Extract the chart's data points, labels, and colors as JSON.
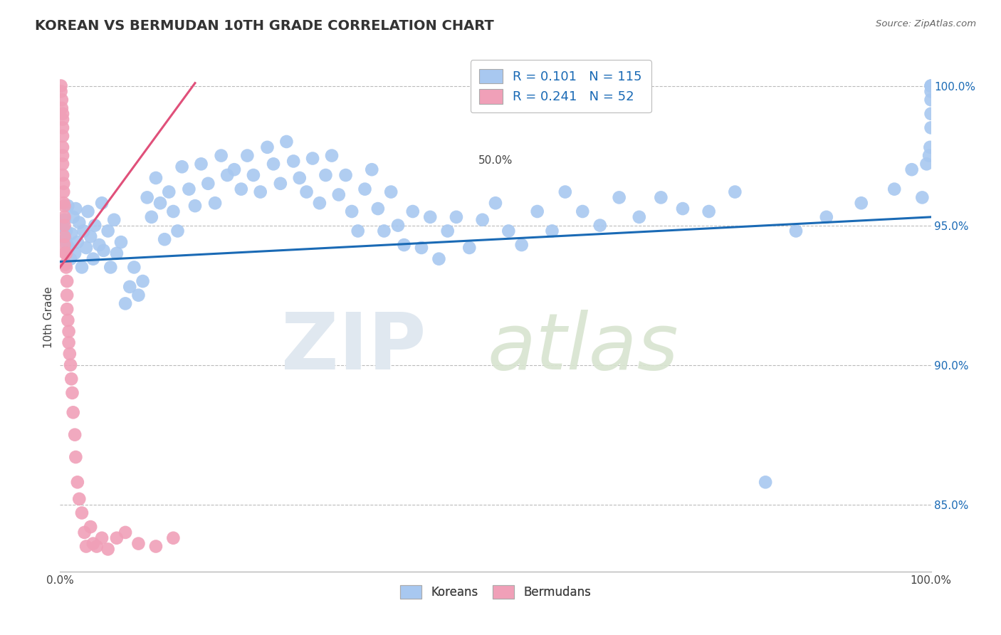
{
  "title": "KOREAN VS BERMUDAN 10TH GRADE CORRELATION CHART",
  "source_text": "Source: ZipAtlas.com",
  "ylabel": "10th Grade",
  "x_min": 0.0,
  "x_max": 1.0,
  "y_min": 0.826,
  "y_max": 1.008,
  "y_ticks": [
    0.85,
    0.9,
    0.95,
    1.0
  ],
  "y_ticklabels": [
    "85.0%",
    "90.0%",
    "95.0%",
    "100.0%"
  ],
  "korean_R": 0.101,
  "korean_N": 115,
  "bermudan_R": 0.241,
  "bermudan_N": 52,
  "korean_color": "#a8c8f0",
  "bermudan_color": "#f0a0b8",
  "korean_line_color": "#1a6ab5",
  "bermudan_line_color": "#e0507a",
  "legend_label_korean": "Koreans",
  "legend_label_bermudan": "Bermudans",
  "korean_line_x": [
    0.0,
    1.0
  ],
  "korean_line_y": [
    0.937,
    0.953
  ],
  "bermudan_line_x": [
    0.0,
    0.155
  ],
  "bermudan_line_y": [
    0.935,
    1.001
  ],
  "korean_pts_x": [
    0.003,
    0.005,
    0.006,
    0.007,
    0.008,
    0.009,
    0.01,
    0.012,
    0.013,
    0.015,
    0.017,
    0.018,
    0.02,
    0.022,
    0.025,
    0.027,
    0.03,
    0.032,
    0.035,
    0.038,
    0.04,
    0.045,
    0.048,
    0.05,
    0.055,
    0.058,
    0.062,
    0.065,
    0.07,
    0.075,
    0.08,
    0.085,
    0.09,
    0.095,
    0.1,
    0.105,
    0.11,
    0.115,
    0.12,
    0.125,
    0.13,
    0.135,
    0.14,
    0.148,
    0.155,
    0.162,
    0.17,
    0.178,
    0.185,
    0.192,
    0.2,
    0.208,
    0.215,
    0.222,
    0.23,
    0.238,
    0.245,
    0.253,
    0.26,
    0.268,
    0.275,
    0.283,
    0.29,
    0.298,
    0.305,
    0.312,
    0.32,
    0.328,
    0.335,
    0.342,
    0.35,
    0.358,
    0.365,
    0.372,
    0.38,
    0.388,
    0.395,
    0.405,
    0.415,
    0.425,
    0.435,
    0.445,
    0.455,
    0.47,
    0.485,
    0.5,
    0.515,
    0.53,
    0.548,
    0.565,
    0.58,
    0.6,
    0.62,
    0.642,
    0.665,
    0.69,
    0.715,
    0.745,
    0.775,
    0.81,
    0.845,
    0.88,
    0.92,
    0.958,
    0.978,
    0.99,
    0.995,
    0.998,
    0.999,
    1.0,
    1.0,
    1.0,
    1.0,
    1.0,
    1.0
  ],
  "korean_pts_y": [
    0.95,
    0.952,
    0.945,
    0.948,
    0.943,
    0.957,
    0.942,
    0.938,
    0.947,
    0.953,
    0.94,
    0.956,
    0.944,
    0.951,
    0.935,
    0.948,
    0.942,
    0.955,
    0.946,
    0.938,
    0.95,
    0.943,
    0.958,
    0.941,
    0.948,
    0.935,
    0.952,
    0.94,
    0.944,
    0.922,
    0.928,
    0.935,
    0.925,
    0.93,
    0.96,
    0.953,
    0.967,
    0.958,
    0.945,
    0.962,
    0.955,
    0.948,
    0.971,
    0.963,
    0.957,
    0.972,
    0.965,
    0.958,
    0.975,
    0.968,
    0.97,
    0.963,
    0.975,
    0.968,
    0.962,
    0.978,
    0.972,
    0.965,
    0.98,
    0.973,
    0.967,
    0.962,
    0.974,
    0.958,
    0.968,
    0.975,
    0.961,
    0.968,
    0.955,
    0.948,
    0.963,
    0.97,
    0.956,
    0.948,
    0.962,
    0.95,
    0.943,
    0.955,
    0.942,
    0.953,
    0.938,
    0.948,
    0.953,
    0.942,
    0.952,
    0.958,
    0.948,
    0.943,
    0.955,
    0.948,
    0.962,
    0.955,
    0.95,
    0.96,
    0.953,
    0.96,
    0.956,
    0.955,
    0.962,
    0.858,
    0.948,
    0.953,
    0.958,
    0.963,
    0.97,
    0.96,
    0.972,
    0.975,
    0.978,
    0.985,
    0.99,
    0.995,
    0.998,
    1.0,
    1.0
  ],
  "bermudan_pts_x": [
    0.001,
    0.001,
    0.002,
    0.002,
    0.003,
    0.003,
    0.003,
    0.003,
    0.003,
    0.003,
    0.003,
    0.003,
    0.004,
    0.004,
    0.004,
    0.005,
    0.005,
    0.005,
    0.005,
    0.005,
    0.006,
    0.006,
    0.007,
    0.007,
    0.008,
    0.008,
    0.008,
    0.009,
    0.01,
    0.01,
    0.011,
    0.012,
    0.013,
    0.014,
    0.015,
    0.017,
    0.018,
    0.02,
    0.022,
    0.025,
    0.028,
    0.03,
    0.035,
    0.038,
    0.042,
    0.048,
    0.055,
    0.065,
    0.075,
    0.09,
    0.11,
    0.13
  ],
  "bermudan_pts_y": [
    1.0,
    0.998,
    0.995,
    0.992,
    0.99,
    0.988,
    0.985,
    0.982,
    0.978,
    0.975,
    0.972,
    0.968,
    0.965,
    0.962,
    0.958,
    0.957,
    0.953,
    0.95,
    0.946,
    0.943,
    0.94,
    0.936,
    0.94,
    0.935,
    0.93,
    0.925,
    0.92,
    0.916,
    0.912,
    0.908,
    0.904,
    0.9,
    0.895,
    0.89,
    0.883,
    0.875,
    0.867,
    0.858,
    0.852,
    0.847,
    0.84,
    0.835,
    0.842,
    0.836,
    0.835,
    0.838,
    0.834,
    0.838,
    0.84,
    0.836,
    0.835,
    0.838
  ]
}
